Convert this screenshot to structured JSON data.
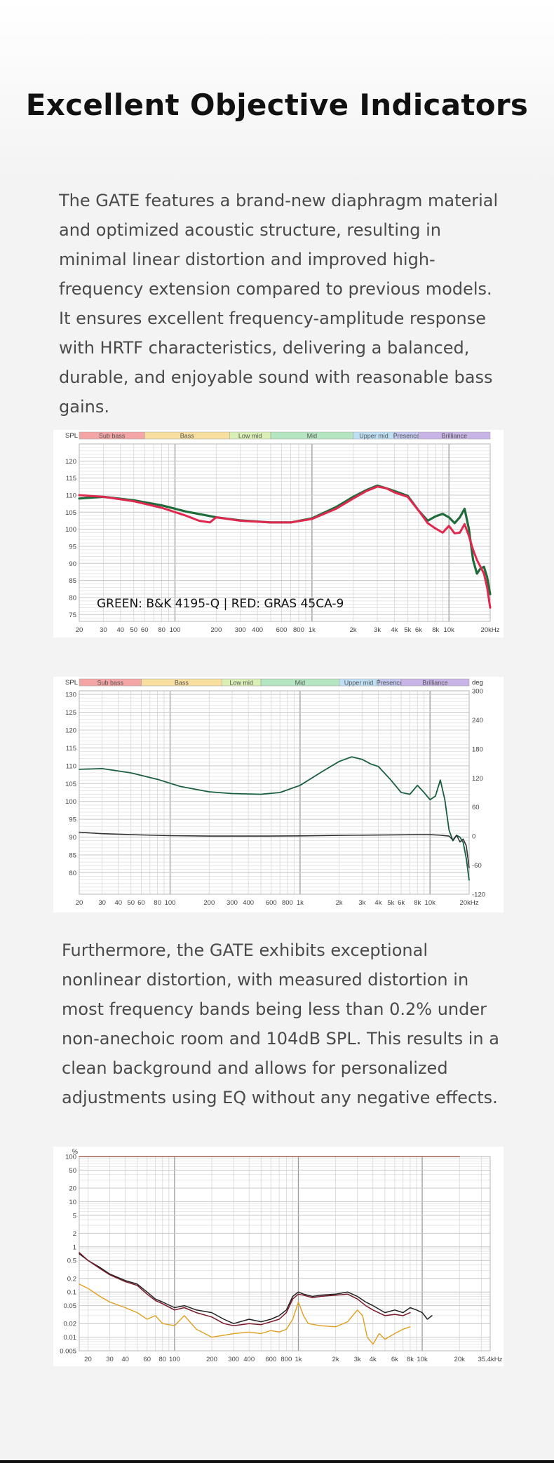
{
  "page": {
    "title": "Excellent Objective Indicators",
    "paragraph1": "The GATE features a brand-new diaphragm material and optimized acoustic structure, resulting in minimal linear distortion and improved high-frequency extension compared to previous models. It ensures excellent frequency-amplitude response with HRTF characteristics, delivering a balanced, durable, and enjoyable sound with reasonable bass gains.",
    "paragraph2": "Furthermore, the GATE exhibits exceptional nonlinear distortion, with measured distortion in most frequency bands being less than 0.2% under non-anechoic room and 104dB SPL. This results in a clean background and allows for personalized adjustments using EQ without any negative effects."
  },
  "chart_data": [
    {
      "type": "line",
      "ylabel": "SPL",
      "ylim": [
        73,
        125
      ],
      "yticks": [
        75,
        80,
        85,
        90,
        95,
        100,
        105,
        110,
        115,
        120
      ],
      "xscale": "log",
      "xlim": [
        20,
        20000
      ],
      "xticks": [
        {
          "v": 20,
          "label": "20"
        },
        {
          "v": 30,
          "label": "30"
        },
        {
          "v": 40,
          "label": "40"
        },
        {
          "v": 50,
          "label": "50"
        },
        {
          "v": 60,
          "label": "60"
        },
        {
          "v": 80,
          "label": "80"
        },
        {
          "v": 100,
          "label": "100"
        },
        {
          "v": 200,
          "label": "200"
        },
        {
          "v": 300,
          "label": "300"
        },
        {
          "v": 400,
          "label": "400"
        },
        {
          "v": 600,
          "label": "600"
        },
        {
          "v": 800,
          "label": "800"
        },
        {
          "v": 1000,
          "label": "1k"
        },
        {
          "v": 2000,
          "label": "2k"
        },
        {
          "v": 3000,
          "label": "3k"
        },
        {
          "v": 4000,
          "label": "4k"
        },
        {
          "v": 5000,
          "label": "5k"
        },
        {
          "v": 6000,
          "label": "6k"
        },
        {
          "v": 8000,
          "label": "8k"
        },
        {
          "v": 10000,
          "label": "10k"
        },
        {
          "v": 20000,
          "label": "20kHz"
        }
      ],
      "bands": [
        {
          "label": "Sub bass",
          "from": 20,
          "to": 60,
          "color": "#f4a5a5"
        },
        {
          "label": "Bass",
          "from": 60,
          "to": 250,
          "color": "#f8dfa0"
        },
        {
          "label": "Low mid",
          "from": 250,
          "to": 500,
          "color": "#d9efb4"
        },
        {
          "label": "Mid",
          "from": 500,
          "to": 2000,
          "color": "#b4e6c1"
        },
        {
          "label": "Upper mid",
          "from": 2000,
          "to": 4000,
          "color": "#bfe0f4"
        },
        {
          "label": "Presence",
          "from": 4000,
          "to": 6000,
          "color": "#c4c8f0"
        },
        {
          "label": "Brilliance",
          "from": 6000,
          "to": 20000,
          "color": "#c8b4e6"
        }
      ],
      "annotation": "GREEN: B&K 4195-Q | RED: GRAS 45CA-9",
      "series": [
        {
          "color": "#1f6b3a",
          "x": [
            20,
            30,
            50,
            80,
            120,
            200,
            300,
            500,
            700,
            1000,
            1500,
            2000,
            2500,
            3000,
            3500,
            4000,
            5000,
            6000,
            7000,
            8000,
            9000,
            10000,
            11000,
            12000,
            13000,
            14000,
            15000,
            16000,
            17000,
            18000,
            19000,
            20000
          ],
          "y": [
            109,
            109.5,
            108.5,
            107,
            105.2,
            103.5,
            102.6,
            102,
            102,
            103.2,
            106.5,
            109.5,
            111.5,
            112.8,
            112,
            111.2,
            109.8,
            105.5,
            102.5,
            103.8,
            104.5,
            103.5,
            101.8,
            103.5,
            106,
            100,
            91,
            87,
            88.5,
            89,
            86,
            81
          ]
        },
        {
          "color": "#e0284f",
          "x": [
            20,
            30,
            50,
            80,
            120,
            150,
            180,
            200,
            300,
            500,
            700,
            1000,
            1500,
            2000,
            2500,
            3000,
            3500,
            4000,
            5000,
            6000,
            7000,
            8000,
            9000,
            10000,
            11000,
            12000,
            13000,
            14000,
            15000,
            16000,
            17000,
            18000,
            19000,
            20000
          ],
          "y": [
            110,
            109.5,
            108.2,
            106.3,
            104,
            102.5,
            102,
            103.5,
            102.5,
            102,
            102,
            103,
            106,
            109,
            111.2,
            112.5,
            112,
            110.8,
            109.5,
            105.5,
            101.8,
            100.2,
            99,
            101,
            98.8,
            99,
            101.5,
            98,
            94,
            91,
            89,
            87,
            83,
            77
          ]
        }
      ]
    },
    {
      "type": "line",
      "ylabel": "SPL",
      "y2label": "deg",
      "ylim": [
        74,
        131
      ],
      "yticks": [
        80,
        85,
        90,
        95,
        100,
        105,
        110,
        115,
        120,
        125,
        130
      ],
      "y2lim": [
        -120,
        300
      ],
      "y2ticks": [
        -120,
        -60,
        0,
        60,
        120,
        180,
        240,
        300
      ],
      "xscale": "log",
      "xlim": [
        20,
        20000
      ],
      "xticks": [
        {
          "v": 20,
          "label": "20"
        },
        {
          "v": 30,
          "label": "30"
        },
        {
          "v": 40,
          "label": "40"
        },
        {
          "v": 50,
          "label": "50"
        },
        {
          "v": 60,
          "label": "60"
        },
        {
          "v": 80,
          "label": "80"
        },
        {
          "v": 100,
          "label": "100"
        },
        {
          "v": 200,
          "label": "200"
        },
        {
          "v": 300,
          "label": "300"
        },
        {
          "v": 400,
          "label": "400"
        },
        {
          "v": 600,
          "label": "600"
        },
        {
          "v": 800,
          "label": "800"
        },
        {
          "v": 1000,
          "label": "1k"
        },
        {
          "v": 2000,
          "label": "2k"
        },
        {
          "v": 3000,
          "label": "3k"
        },
        {
          "v": 4000,
          "label": "4k"
        },
        {
          "v": 5000,
          "label": "5k"
        },
        {
          "v": 6000,
          "label": "6k"
        },
        {
          "v": 8000,
          "label": "8k"
        },
        {
          "v": 10000,
          "label": "10k"
        },
        {
          "v": 20000,
          "label": "20kHz"
        }
      ],
      "bands": [
        {
          "label": "Sub bass",
          "from": 20,
          "to": 60,
          "color": "#f4a5a5"
        },
        {
          "label": "Bass",
          "from": 60,
          "to": 250,
          "color": "#f8dfa0"
        },
        {
          "label": "Low mid",
          "from": 250,
          "to": 500,
          "color": "#d9efb4"
        },
        {
          "label": "Mid",
          "from": 500,
          "to": 2000,
          "color": "#b4e6c1"
        },
        {
          "label": "Upper mid",
          "from": 2000,
          "to": 4000,
          "color": "#bfe0f4"
        },
        {
          "label": "Presence",
          "from": 4000,
          "to": 6000,
          "color": "#c4c8f0"
        },
        {
          "label": "Brilliance",
          "from": 6000,
          "to": 20000,
          "color": "#c8b4e6"
        }
      ],
      "series": [
        {
          "color": "#1a5e40",
          "axis": "left",
          "x": [
            20,
            30,
            50,
            80,
            120,
            200,
            300,
            500,
            700,
            1000,
            1500,
            2000,
            2500,
            3000,
            3500,
            4000,
            5000,
            6000,
            7000,
            8000,
            9000,
            10000,
            11000,
            12000,
            13000,
            14000,
            15000,
            16000,
            17000,
            18000,
            19000,
            20000
          ],
          "y": [
            109,
            109.2,
            108,
            106.2,
            104.2,
            102.7,
            102.2,
            102,
            102.5,
            104.5,
            108.5,
            111.2,
            112.5,
            111.8,
            110.5,
            109.8,
            106,
            102.5,
            102,
            104.5,
            102.5,
            100.5,
            101.5,
            106,
            100.5,
            92,
            89,
            90.5,
            90,
            88.5,
            84,
            78
          ]
        },
        {
          "color": "#333333",
          "axis": "right",
          "x": [
            20,
            30,
            50,
            100,
            200,
            500,
            1000,
            2000,
            3000,
            5000,
            8000,
            10000,
            12000,
            14000,
            15000,
            16000,
            17000,
            18000,
            19000,
            20000
          ],
          "y": [
            8,
            5,
            3,
            1,
            0,
            0,
            0.5,
            1.5,
            2,
            2.5,
            3,
            3,
            2,
            0,
            -8,
            2,
            -12,
            -6,
            -20,
            -65
          ]
        }
      ]
    },
    {
      "type": "line",
      "ylabel": "%",
      "yscale": "log",
      "ylim": [
        0.005,
        100
      ],
      "yticks": [
        {
          "v": 100,
          "label": "100"
        },
        {
          "v": 50,
          "label": "50"
        },
        {
          "v": 20,
          "label": "20"
        },
        {
          "v": 10,
          "label": "10"
        },
        {
          "v": 5,
          "label": "5"
        },
        {
          "v": 2,
          "label": "2"
        },
        {
          "v": 1,
          "label": "1"
        },
        {
          "v": 0.5,
          "label": "0.5"
        },
        {
          "v": 0.2,
          "label": "0.2"
        },
        {
          "v": 0.1,
          "label": "0.1"
        },
        {
          "v": 0.05,
          "label": "0.05"
        },
        {
          "v": 0.02,
          "label": "0.02"
        },
        {
          "v": 0.01,
          "label": "0.01"
        },
        {
          "v": 0.005,
          "label": "0.005"
        }
      ],
      "xscale": "log",
      "xlim": [
        17,
        35400
      ],
      "xticks": [
        {
          "v": 20,
          "label": "20"
        },
        {
          "v": 30,
          "label": "30"
        },
        {
          "v": 40,
          "label": "40"
        },
        {
          "v": 60,
          "label": "60"
        },
        {
          "v": 80,
          "label": "80"
        },
        {
          "v": 100,
          "label": "100"
        },
        {
          "v": 200,
          "label": "200"
        },
        {
          "v": 300,
          "label": "300"
        },
        {
          "v": 400,
          "label": "400"
        },
        {
          "v": 600,
          "label": "600"
        },
        {
          "v": 800,
          "label": "800"
        },
        {
          "v": 1000,
          "label": "1k"
        },
        {
          "v": 2000,
          "label": "2k"
        },
        {
          "v": 3000,
          "label": "3k"
        },
        {
          "v": 4000,
          "label": "4k"
        },
        {
          "v": 6000,
          "label": "6k"
        },
        {
          "v": 8000,
          "label": "8k"
        },
        {
          "v": 10000,
          "label": "10k"
        },
        {
          "v": 20000,
          "label": "20k"
        },
        {
          "v": 35400,
          "label": "35.4kHz"
        }
      ],
      "series": [
        {
          "color": "#a06050",
          "x": [
            17,
            20000
          ],
          "y": [
            100,
            100
          ]
        },
        {
          "color": "#222222",
          "x": [
            17,
            20,
            25,
            30,
            40,
            50,
            60,
            70,
            80,
            100,
            120,
            150,
            200,
            250,
            300,
            400,
            500,
            600,
            700,
            800,
            900,
            1000,
            1100,
            1300,
            1500,
            2000,
            2500,
            3000,
            3500,
            4000,
            5000,
            6000,
            7000,
            8000,
            9000,
            10000,
            11000,
            12000
          ],
          "y": [
            0.7,
            0.5,
            0.35,
            0.25,
            0.18,
            0.15,
            0.1,
            0.07,
            0.06,
            0.045,
            0.05,
            0.04,
            0.035,
            0.025,
            0.02,
            0.025,
            0.022,
            0.025,
            0.03,
            0.04,
            0.08,
            0.1,
            0.09,
            0.08,
            0.085,
            0.09,
            0.1,
            0.08,
            0.06,
            0.05,
            0.035,
            0.04,
            0.035,
            0.045,
            0.04,
            0.035,
            0.025,
            0.03
          ]
        },
        {
          "color": "#7a1a2a",
          "x": [
            17,
            20,
            25,
            30,
            40,
            50,
            60,
            70,
            80,
            100,
            120,
            150,
            200,
            250,
            300,
            400,
            500,
            600,
            700,
            800,
            900,
            1000,
            1100,
            1300,
            1500,
            2000,
            2500,
            3000,
            3500,
            4000,
            5000,
            6000,
            7000,
            8000
          ],
          "y": [
            0.75,
            0.5,
            0.33,
            0.24,
            0.17,
            0.14,
            0.09,
            0.065,
            0.055,
            0.04,
            0.045,
            0.035,
            0.028,
            0.02,
            0.018,
            0.02,
            0.019,
            0.022,
            0.025,
            0.035,
            0.07,
            0.09,
            0.085,
            0.075,
            0.08,
            0.085,
            0.09,
            0.07,
            0.05,
            0.04,
            0.03,
            0.032,
            0.03,
            0.035
          ]
        },
        {
          "color": "#e0a020",
          "x": [
            17,
            20,
            25,
            30,
            40,
            50,
            60,
            70,
            80,
            100,
            120,
            150,
            200,
            250,
            300,
            400,
            500,
            600,
            700,
            800,
            900,
            1000,
            1100,
            1200,
            1500,
            2000,
            2500,
            3000,
            3300,
            3600,
            4000,
            4500,
            5000,
            6000,
            7000,
            8000
          ],
          "y": [
            0.15,
            0.12,
            0.08,
            0.06,
            0.045,
            0.035,
            0.025,
            0.03,
            0.02,
            0.018,
            0.03,
            0.015,
            0.01,
            0.011,
            0.012,
            0.013,
            0.012,
            0.014,
            0.013,
            0.015,
            0.025,
            0.06,
            0.03,
            0.02,
            0.018,
            0.017,
            0.022,
            0.04,
            0.03,
            0.01,
            0.007,
            0.012,
            0.009,
            0.012,
            0.015,
            0.017
          ]
        }
      ]
    }
  ]
}
